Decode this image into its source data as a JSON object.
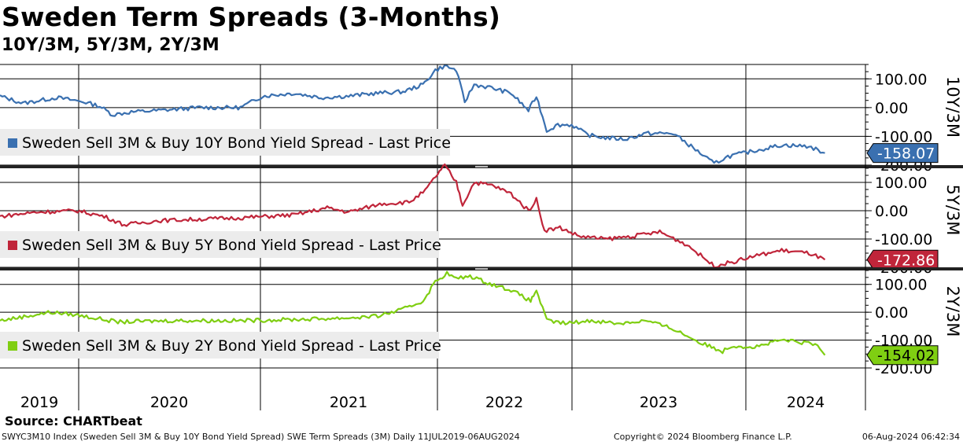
{
  "header": {
    "title": "Sweden Term Spreads (3-Months)",
    "subtitle": "10Y/3M, 5Y/3M, 2Y/3M"
  },
  "footer": {
    "source": "Source: CHARTbeat",
    "description": "SWYC3M10 Index (Sweden Sell 3M & Buy 10Y Bond Yield Spread) SWE Term Spreads (3M)  Daily 11JUL2019-06AUG2024",
    "copyright": "Copyright© 2024 Bloomberg Finance L.P.",
    "timestamp": "06-Aug-2024 06:42:34"
  },
  "chart_data": {
    "type": "line",
    "x_axis": {
      "range": [
        "2019-07-11",
        "2024-08-06"
      ],
      "year_labels": [
        "2019",
        "2020",
        "2021",
        "2022",
        "2023",
        "2024"
      ],
      "grid": true
    },
    "panels": [
      {
        "id": "p10",
        "axis_title": "10Y/3M",
        "color": "#3a70b0",
        "legend": "Sweden Sell 3M & Buy 10Y Bond Yield Spread - Last Price",
        "last_value": "-158.07",
        "ylim": [
          -200,
          150
        ],
        "yticks": [
          {
            "v": 100,
            "label": "100.00"
          },
          {
            "v": 0,
            "label": "0.00"
          },
          {
            "v": -100,
            "label": "-100.00"
          },
          {
            "v": -200,
            "label": "-200.00"
          }
        ],
        "points": [
          [
            "2019-07-11",
            40
          ],
          [
            "2019-09-01",
            15
          ],
          [
            "2019-11-15",
            35
          ],
          [
            "2020-01-15",
            20
          ],
          [
            "2020-02-20",
            5
          ],
          [
            "2020-03-20",
            -25
          ],
          [
            "2020-05-01",
            -15
          ],
          [
            "2020-07-01",
            -10
          ],
          [
            "2020-10-01",
            0
          ],
          [
            "2021-01-01",
            0
          ],
          [
            "2021-02-20",
            40
          ],
          [
            "2021-05-01",
            50
          ],
          [
            "2021-07-01",
            35
          ],
          [
            "2021-09-01",
            40
          ],
          [
            "2021-11-01",
            50
          ],
          [
            "2022-01-01",
            55
          ],
          [
            "2022-02-15",
            80
          ],
          [
            "2022-03-15",
            130
          ],
          [
            "2022-04-05",
            145
          ],
          [
            "2022-05-01",
            130
          ],
          [
            "2022-05-20",
            20
          ],
          [
            "2022-06-10",
            80
          ],
          [
            "2022-07-15",
            70
          ],
          [
            "2022-09-01",
            50
          ],
          [
            "2022-10-10",
            -10
          ],
          [
            "2022-10-28",
            40
          ],
          [
            "2022-11-20",
            -80
          ],
          [
            "2022-12-15",
            -60
          ],
          [
            "2023-01-15",
            -60
          ],
          [
            "2023-02-20",
            -95
          ],
          [
            "2023-04-01",
            -105
          ],
          [
            "2023-05-15",
            -110
          ],
          [
            "2023-07-01",
            -90
          ],
          [
            "2023-09-01",
            -90
          ],
          [
            "2023-10-15",
            -140
          ],
          [
            "2023-12-01",
            -195
          ],
          [
            "2024-01-01",
            -170
          ],
          [
            "2024-03-01",
            -150
          ],
          [
            "2024-05-01",
            -130
          ],
          [
            "2024-07-01",
            -135
          ],
          [
            "2024-08-06",
            -158
          ]
        ]
      },
      {
        "id": "p5",
        "axis_title": "5Y/3M",
        "color": "#c0253a",
        "legend": "Sweden Sell 3M & Buy 5Y Bond Yield Spread - Last Price",
        "last_value": "-172.86",
        "ylim": [
          -200,
          150
        ],
        "yticks": [
          {
            "v": 100,
            "label": "100.00"
          },
          {
            "v": 0,
            "label": "0.00"
          },
          {
            "v": -100,
            "label": "-100.00"
          },
          {
            "v": -200,
            "label": "-200.00"
          }
        ],
        "points": [
          [
            "2019-07-11",
            -20
          ],
          [
            "2019-10-01",
            -5
          ],
          [
            "2020-01-01",
            0
          ],
          [
            "2020-03-01",
            -20
          ],
          [
            "2020-04-15",
            -50
          ],
          [
            "2020-07-01",
            -35
          ],
          [
            "2020-10-01",
            -30
          ],
          [
            "2021-01-01",
            -25
          ],
          [
            "2021-05-01",
            -15
          ],
          [
            "2021-07-15",
            10
          ],
          [
            "2021-09-01",
            -5
          ],
          [
            "2021-11-15",
            25
          ],
          [
            "2022-01-15",
            30
          ],
          [
            "2022-02-20",
            70
          ],
          [
            "2022-03-20",
            130
          ],
          [
            "2022-04-05",
            160
          ],
          [
            "2022-05-01",
            100
          ],
          [
            "2022-05-15",
            20
          ],
          [
            "2022-06-10",
            100
          ],
          [
            "2022-07-20",
            90
          ],
          [
            "2022-09-01",
            60
          ],
          [
            "2022-10-10",
            0
          ],
          [
            "2022-10-28",
            40
          ],
          [
            "2022-11-15",
            -70
          ],
          [
            "2022-12-20",
            -60
          ],
          [
            "2023-02-01",
            -90
          ],
          [
            "2023-04-01",
            -100
          ],
          [
            "2023-06-01",
            -90
          ],
          [
            "2023-08-01",
            -75
          ],
          [
            "2023-10-01",
            -120
          ],
          [
            "2023-12-01",
            -195
          ],
          [
            "2024-01-15",
            -180
          ],
          [
            "2024-03-01",
            -160
          ],
          [
            "2024-05-01",
            -140
          ],
          [
            "2024-07-01",
            -150
          ],
          [
            "2024-08-06",
            -173
          ]
        ]
      },
      {
        "id": "p2",
        "axis_title": "2Y/3M",
        "color": "#7fce12",
        "legend": "Sweden Sell 3M & Buy 2Y Bond Yield Spread - Last Price",
        "last_value": "-154.02",
        "ylim": [
          -200,
          150
        ],
        "yticks": [
          {
            "v": 100,
            "label": "100.00"
          },
          {
            "v": 0,
            "label": "0.00"
          },
          {
            "v": -100,
            "label": "-100.00"
          },
          {
            "v": -200,
            "label": "-200.00"
          }
        ],
        "points": [
          [
            "2019-07-11",
            -30
          ],
          [
            "2019-11-01",
            0
          ],
          [
            "2020-01-01",
            -10
          ],
          [
            "2020-04-01",
            -35
          ],
          [
            "2020-08-01",
            -30
          ],
          [
            "2021-01-01",
            -30
          ],
          [
            "2021-06-01",
            -25
          ],
          [
            "2021-09-01",
            -20
          ],
          [
            "2021-11-01",
            -15
          ],
          [
            "2022-01-01",
            10
          ],
          [
            "2022-02-15",
            40
          ],
          [
            "2022-03-15",
            110
          ],
          [
            "2022-04-10",
            140
          ],
          [
            "2022-05-01",
            120
          ],
          [
            "2022-06-01",
            130
          ],
          [
            "2022-07-20",
            100
          ],
          [
            "2022-09-01",
            80
          ],
          [
            "2022-10-15",
            40
          ],
          [
            "2022-10-28",
            80
          ],
          [
            "2022-11-20",
            -30
          ],
          [
            "2023-01-01",
            -40
          ],
          [
            "2023-03-01",
            -30
          ],
          [
            "2023-05-01",
            -40
          ],
          [
            "2023-07-01",
            -30
          ],
          [
            "2023-09-01",
            -60
          ],
          [
            "2023-11-01",
            -110
          ],
          [
            "2023-12-20",
            -140
          ],
          [
            "2024-01-10",
            -120
          ],
          [
            "2024-03-01",
            -125
          ],
          [
            "2024-05-01",
            -100
          ],
          [
            "2024-07-15",
            -115
          ],
          [
            "2024-08-06",
            -154
          ]
        ]
      }
    ]
  }
}
